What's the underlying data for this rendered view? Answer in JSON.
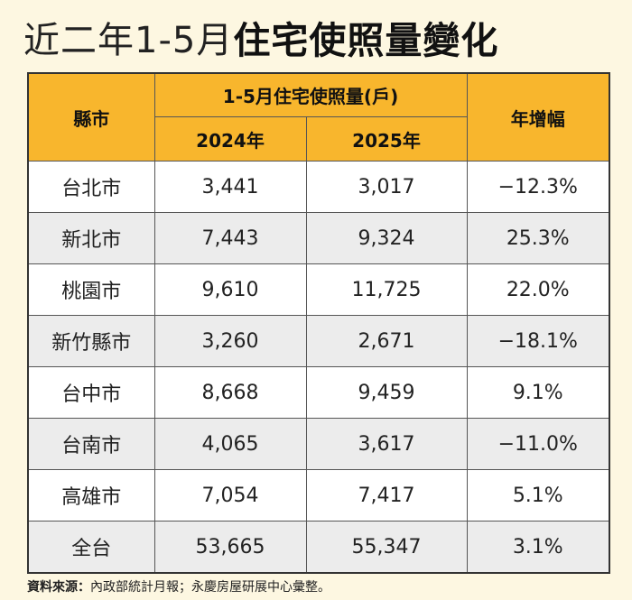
{
  "title": {
    "prefix": "近二年1-5月",
    "main": "住宅使照量變化"
  },
  "table": {
    "header": {
      "city": "縣市",
      "group": "1-5月住宅使照量(戶)",
      "year_a": "2024年",
      "year_b": "2025年",
      "growth": "年增幅"
    },
    "rows": [
      {
        "city": "台北市",
        "y2024": "3,441",
        "y2025": "3,017",
        "growth": "−12.3%"
      },
      {
        "city": "新北市",
        "y2024": "7,443",
        "y2025": "9,324",
        "growth": "25.3%"
      },
      {
        "city": "桃園市",
        "y2024": "9,610",
        "y2025": "11,725",
        "growth": "22.0%"
      },
      {
        "city": "新竹縣市",
        "y2024": "3,260",
        "y2025": "2,671",
        "growth": "−18.1%"
      },
      {
        "city": "台中市",
        "y2024": "8,668",
        "y2025": "9,459",
        "growth": "9.1%"
      },
      {
        "city": "台南市",
        "y2024": "4,065",
        "y2025": "3,617",
        "growth": "−11.0%"
      },
      {
        "city": "高雄市",
        "y2024": "7,054",
        "y2025": "7,417",
        "growth": "5.1%"
      },
      {
        "city": "全台",
        "y2024": "53,665",
        "y2025": "55,347",
        "growth": "3.1%"
      }
    ]
  },
  "source": {
    "label": "資料來源：",
    "text": "內政部統計月報；永慶房屋研展中心彙整。"
  },
  "colors": {
    "background": "#fdf7e1",
    "header": "#f8b62d",
    "row_alt": "#ececec"
  }
}
